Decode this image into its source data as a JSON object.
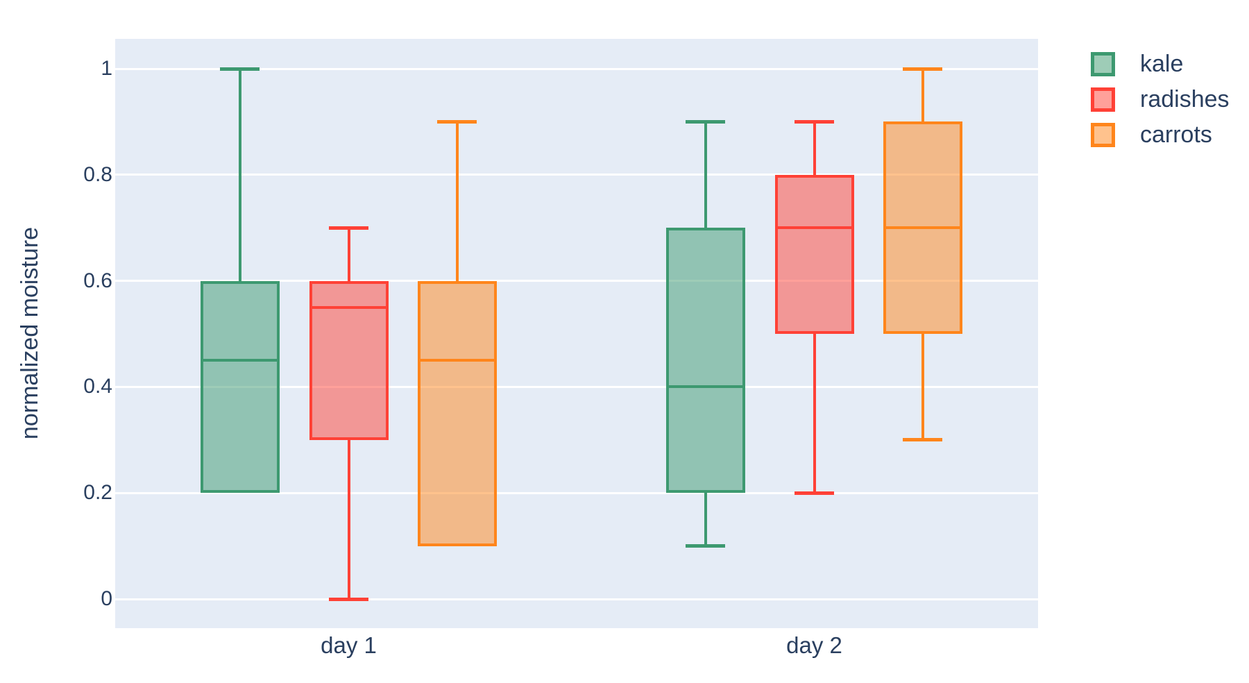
{
  "chart_data": {
    "type": "box",
    "title": "",
    "xlabel": "",
    "ylabel": "normalized moisture",
    "boxmode": "group",
    "grid": true,
    "legend_position": "top-right",
    "categories": [
      "day 1",
      "day 2"
    ],
    "yticks": [
      {
        "value": 0,
        "label": "0"
      },
      {
        "value": 0.2,
        "label": "0.2"
      },
      {
        "value": 0.4,
        "label": "0.4"
      },
      {
        "value": 0.6,
        "label": "0.6"
      },
      {
        "value": 0.8,
        "label": "0.8"
      },
      {
        "value": 1,
        "label": "1"
      }
    ],
    "ylim": [
      -0.06,
      1.06
    ],
    "series": [
      {
        "name": "kale",
        "color": "#3D9970",
        "boxes": [
          {
            "category": "day 1",
            "lower_fence": 0.2,
            "q1": 0.2,
            "median": 0.45,
            "q3": 0.6,
            "upper_fence": 1.0
          },
          {
            "category": "day 2",
            "lower_fence": 0.1,
            "q1": 0.2,
            "median": 0.4,
            "q3": 0.7,
            "upper_fence": 0.9
          }
        ]
      },
      {
        "name": "radishes",
        "color": "#FF4136",
        "boxes": [
          {
            "category": "day 1",
            "lower_fence": 0.0,
            "q1": 0.3,
            "median": 0.55,
            "q3": 0.6,
            "upper_fence": 0.7
          },
          {
            "category": "day 2",
            "lower_fence": 0.2,
            "q1": 0.5,
            "median": 0.7,
            "q3": 0.8,
            "upper_fence": 0.9
          }
        ]
      },
      {
        "name": "carrots",
        "color": "#FF851B",
        "boxes": [
          {
            "category": "day 1",
            "lower_fence": 0.1,
            "q1": 0.1,
            "median": 0.45,
            "q3": 0.6,
            "upper_fence": 0.9
          },
          {
            "category": "day 2",
            "lower_fence": 0.3,
            "q1": 0.5,
            "median": 0.7,
            "q3": 0.9,
            "upper_fence": 1.0
          }
        ]
      }
    ],
    "colors": {
      "plot_background": "#E5ECF6",
      "gridline": "#FFFFFF",
      "text": "#2A3F5F",
      "page_background": "#FFFFFF",
      "kale": "#3D9970",
      "radishes": "#FF4136",
      "carrots": "#FF851B"
    }
  }
}
